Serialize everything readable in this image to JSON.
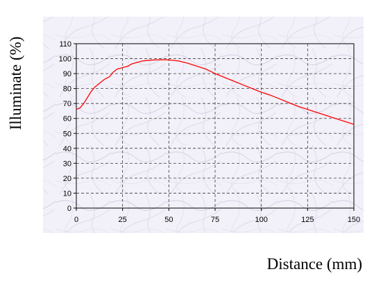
{
  "chart_data": {
    "type": "line",
    "title": "",
    "xlabel": "Distance (mm)",
    "ylabel": "Illuminate (%)",
    "xlim": [
      0,
      150
    ],
    "ylim": [
      0,
      110
    ],
    "x_ticks": [
      "0",
      "25",
      "50",
      "75",
      "100",
      "125",
      "150"
    ],
    "y_ticks": [
      "0",
      "10",
      "20",
      "30",
      "40",
      "50",
      "60",
      "70",
      "80",
      "90",
      "100",
      "110"
    ],
    "grid": true,
    "grid_style": "dashed",
    "legend": "none",
    "series": [
      {
        "color": "#ff0000",
        "x": [
          0,
          2,
          4,
          6,
          8,
          10,
          12,
          15,
          18,
          20,
          22,
          25,
          28,
          30,
          33,
          36,
          40,
          45,
          50,
          55,
          60,
          65,
          70,
          75,
          80,
          85,
          90,
          95,
          100,
          105,
          110,
          115,
          120,
          125,
          130,
          135,
          140,
          145,
          150
        ],
        "y": [
          66,
          67,
          70,
          74,
          78,
          81,
          83,
          86,
          88,
          91,
          93,
          94,
          95,
          96.5,
          97.5,
          98.5,
          99,
          99.3,
          99.2,
          98.5,
          97,
          95,
          93,
          90,
          87.5,
          85,
          82.5,
          80,
          77.5,
          75.5,
          73,
          70.5,
          68,
          66,
          64,
          62,
          60,
          58,
          56
        ]
      }
    ]
  },
  "colors": {
    "plot_background": "#f1eff7",
    "texture_stroke": "#c8c4dc",
    "grid": "#3a3a3a",
    "axis": "#000000",
    "line": "#ff0000"
  }
}
